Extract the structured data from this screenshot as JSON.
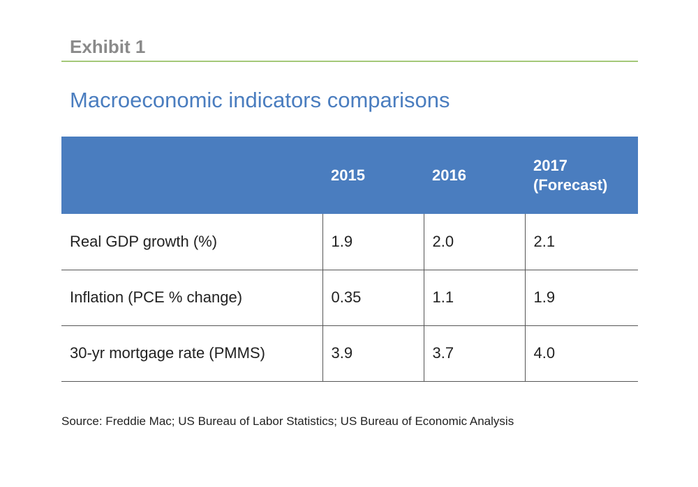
{
  "exhibit_label": "Exhibit 1",
  "title": "Macroeconomic indicators comparisons",
  "chart_data": {
    "type": "table",
    "title": "Macroeconomic indicators comparisons",
    "columns": [
      "",
      "2015",
      "2016",
      "2017\n(Forecast)"
    ],
    "rows": [
      {
        "label": "Real GDP growth (%)",
        "values": [
          "1.9",
          "2.0",
          "2.1"
        ]
      },
      {
        "label": "Inflation (PCE % change)",
        "values": [
          "0.35",
          "1.1",
          "1.9"
        ]
      },
      {
        "label": "30-yr mortgage rate (PMMS)",
        "values": [
          "3.9",
          "3.7",
          "4.0"
        ]
      }
    ],
    "source": "Source: Freddie Mac; US Bureau of Labor Statistics; US Bureau of Economic Analysis"
  },
  "colors": {
    "header_background": "#4a7dbf",
    "title_color": "#4a7dbf",
    "exhibit_color": "#8a8a8a",
    "rule_color": "#a4c879"
  }
}
